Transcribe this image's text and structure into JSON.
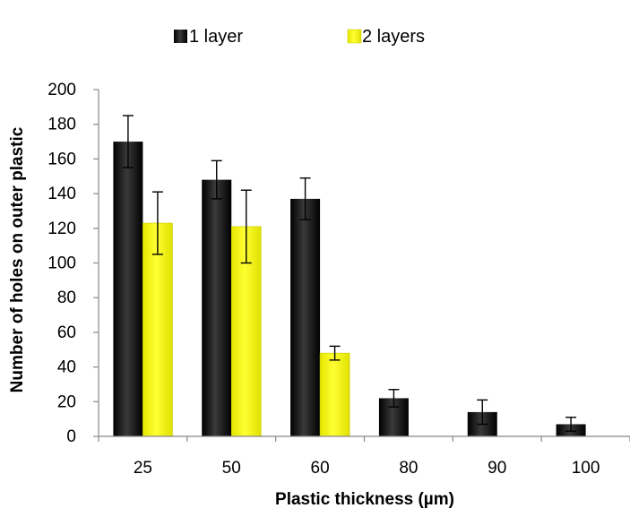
{
  "chart_data": {
    "type": "bar",
    "title": "",
    "xlabel": "Plastic thickness (µm)",
    "ylabel": "Number of holes on outer plastic",
    "categories": [
      "25",
      "50",
      "60",
      "80",
      "90",
      "100"
    ],
    "ylim": [
      0,
      200
    ],
    "yticks": [
      0,
      20,
      40,
      60,
      80,
      100,
      120,
      140,
      160,
      180,
      200
    ],
    "legend_position": "top",
    "grid": false,
    "series": [
      {
        "name": "1 layer",
        "color": "#000000",
        "values": [
          170,
          148,
          137,
          22,
          14,
          7
        ],
        "error": [
          15,
          11,
          12,
          5,
          7,
          4
        ]
      },
      {
        "name": "2 layers",
        "color": "#ffff00",
        "values": [
          123,
          121,
          48,
          null,
          null,
          null
        ],
        "error": [
          18,
          21,
          4,
          null,
          null,
          null
        ]
      }
    ]
  }
}
